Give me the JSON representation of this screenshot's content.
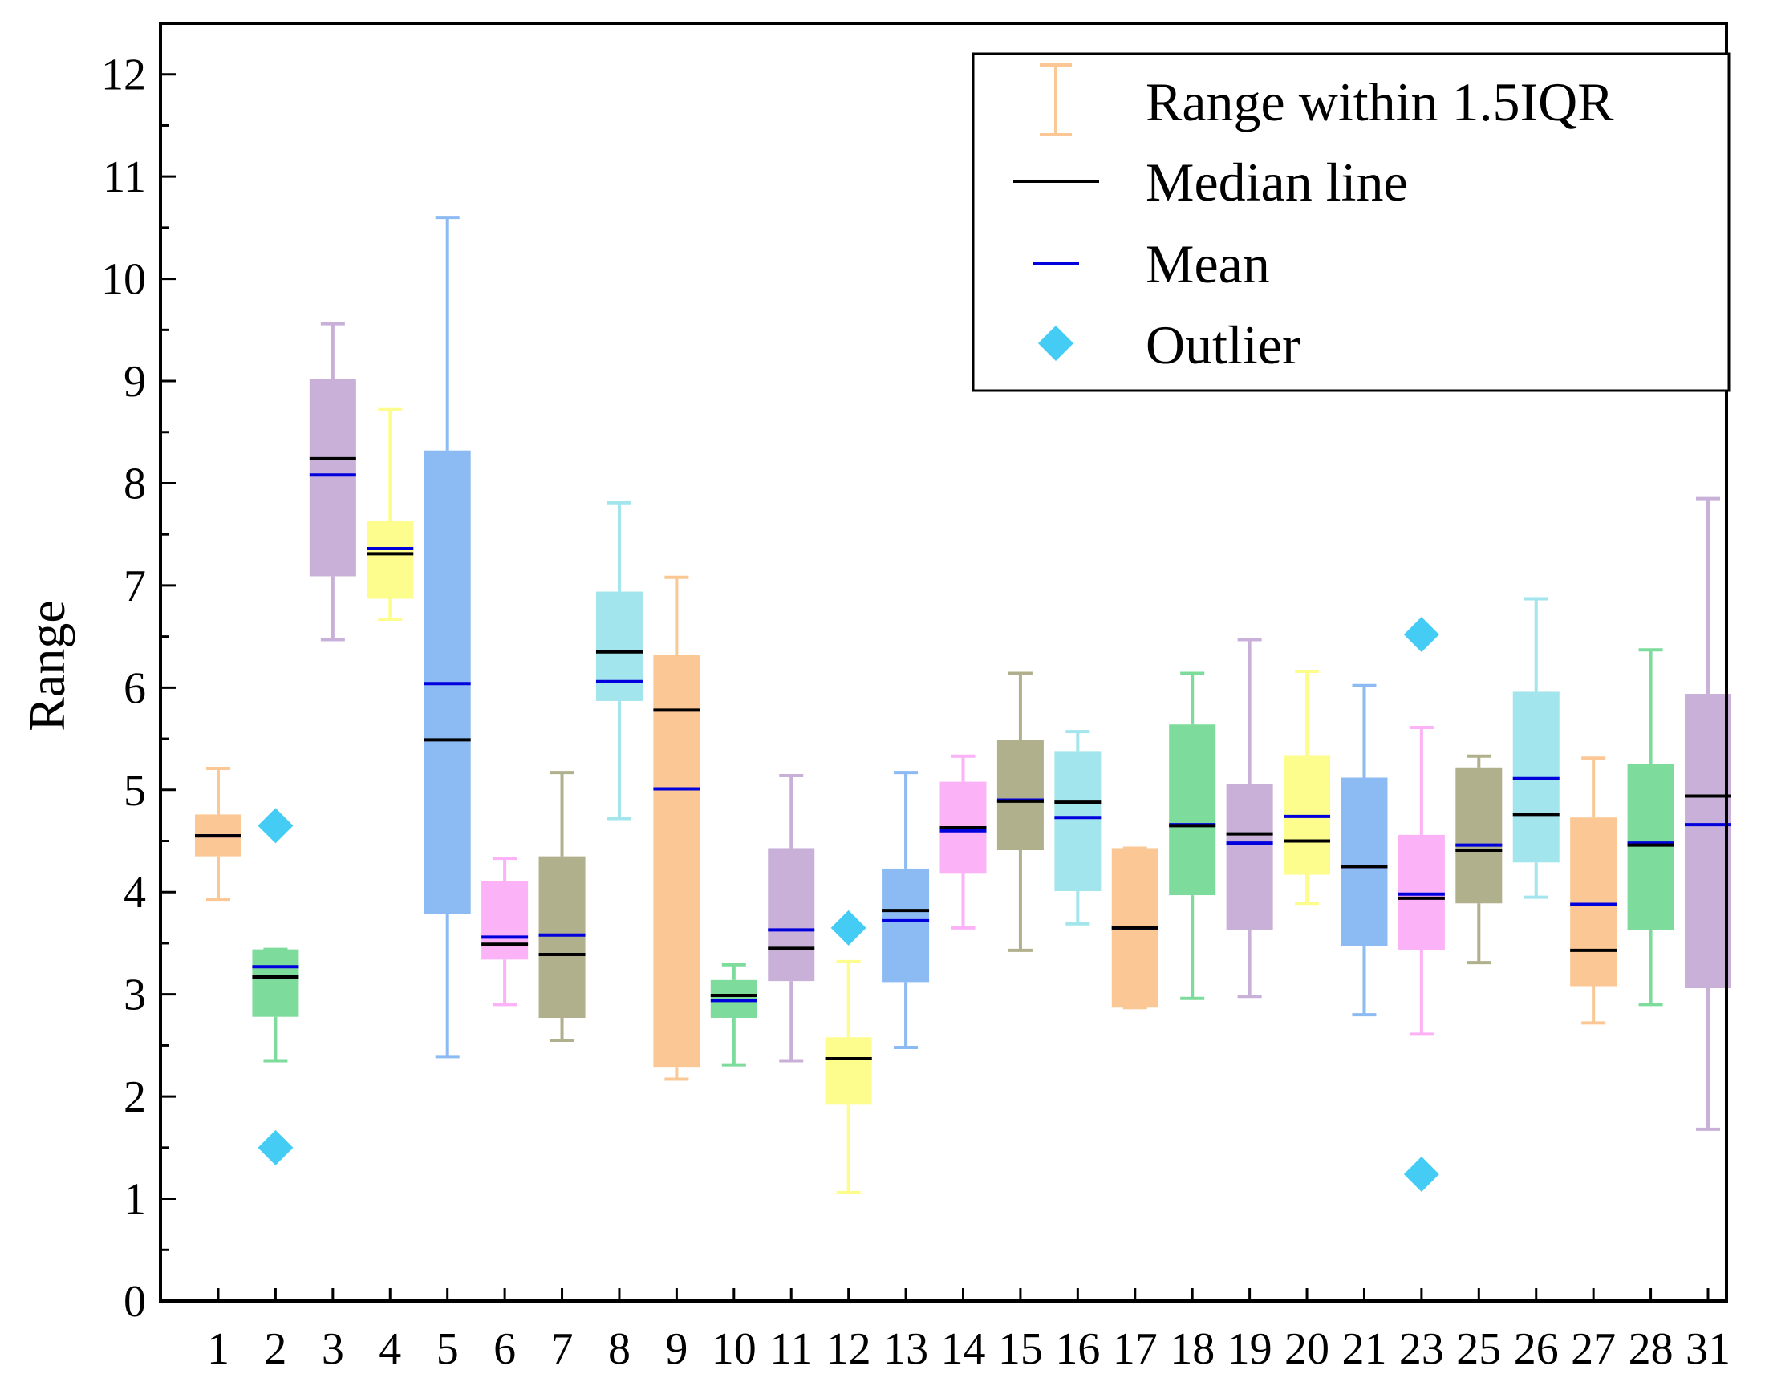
{
  "chart_data": {
    "type": "box",
    "title": "",
    "xlabel": "",
    "ylabel": "Range",
    "ylim": [
      0,
      12.5
    ],
    "yticks": [
      0,
      1,
      2,
      3,
      4,
      5,
      6,
      7,
      8,
      9,
      10,
      11,
      12
    ],
    "grid": false,
    "legend_position": "top-right",
    "legend": {
      "range": "Range within 1.5IQR",
      "median": "Median line",
      "mean": "Mean",
      "outlier": "Outlier"
    },
    "colors": {
      "orange": "#fbc895",
      "green": "#7ddb9b",
      "purple": "#c8b0d8",
      "yellow": "#fdfd8e",
      "blue": "#8cbaf2",
      "pink": "#fbb2f7",
      "olive": "#b0b08c",
      "cyan": "#a2e5ec",
      "median": "#000000",
      "mean": "#0000dd",
      "outlier": "#44ccf5"
    },
    "categories": [
      "1",
      "2",
      "3",
      "4",
      "5",
      "6",
      "7",
      "8",
      "9",
      "10",
      "11",
      "12",
      "13",
      "14",
      "15",
      "16",
      "17",
      "18",
      "19",
      "20",
      "21",
      "23",
      "25",
      "26",
      "27",
      "28",
      "31"
    ],
    "boxes": [
      {
        "label": "1",
        "color": "orange",
        "whisker_low": 3.93,
        "q1": 4.35,
        "median": 4.55,
        "q3": 4.76,
        "whisker_high": 5.21,
        "mean": 4.55,
        "outliers": []
      },
      {
        "label": "2",
        "color": "green",
        "whisker_low": 2.35,
        "q1": 2.78,
        "median": 3.17,
        "q3": 3.44,
        "whisker_high": 3.44,
        "mean": 3.27,
        "outliers": [
          4.65,
          1.5
        ]
      },
      {
        "label": "3",
        "color": "purple",
        "whisker_low": 6.47,
        "q1": 7.09,
        "median": 8.24,
        "q3": 9.02,
        "whisker_high": 9.56,
        "mean": 8.08,
        "outliers": []
      },
      {
        "label": "4",
        "color": "yellow",
        "whisker_low": 6.67,
        "q1": 6.87,
        "median": 7.31,
        "q3": 7.63,
        "whisker_high": 8.72,
        "mean": 7.36,
        "outliers": []
      },
      {
        "label": "5",
        "color": "blue",
        "whisker_low": 2.39,
        "q1": 3.79,
        "median": 5.49,
        "q3": 8.32,
        "whisker_high": 10.6,
        "mean": 6.04,
        "outliers": []
      },
      {
        "label": "6",
        "color": "pink",
        "whisker_low": 2.9,
        "q1": 3.34,
        "median": 3.49,
        "q3": 4.11,
        "whisker_high": 4.33,
        "mean": 3.56,
        "outliers": []
      },
      {
        "label": "7",
        "color": "olive",
        "whisker_low": 2.55,
        "q1": 2.77,
        "median": 3.39,
        "q3": 4.35,
        "whisker_high": 5.17,
        "mean": 3.58,
        "outliers": []
      },
      {
        "label": "8",
        "color": "cyan",
        "whisker_low": 4.72,
        "q1": 5.87,
        "median": 6.35,
        "q3": 6.94,
        "whisker_high": 7.81,
        "mean": 6.06,
        "outliers": []
      },
      {
        "label": "9",
        "color": "orange",
        "whisker_low": 2.17,
        "q1": 2.29,
        "median": 5.78,
        "q3": 6.32,
        "whisker_high": 7.08,
        "mean": 5.01,
        "outliers": []
      },
      {
        "label": "10",
        "color": "green",
        "whisker_low": 2.31,
        "q1": 2.77,
        "median": 2.99,
        "q3": 3.14,
        "whisker_high": 3.29,
        "mean": 2.94,
        "outliers": []
      },
      {
        "label": "11",
        "color": "purple",
        "whisker_low": 2.35,
        "q1": 3.13,
        "median": 3.45,
        "q3": 4.43,
        "whisker_high": 5.14,
        "mean": 3.63,
        "outliers": []
      },
      {
        "label": "12",
        "color": "yellow",
        "whisker_low": 1.06,
        "q1": 1.92,
        "median": 2.37,
        "q3": 2.58,
        "whisker_high": 3.32,
        "mean": 2.37,
        "outliers": [
          3.65
        ]
      },
      {
        "label": "13",
        "color": "blue",
        "whisker_low": 2.48,
        "q1": 3.12,
        "median": 3.82,
        "q3": 4.23,
        "whisker_high": 5.17,
        "mean": 3.72,
        "outliers": []
      },
      {
        "label": "14",
        "color": "pink",
        "whisker_low": 3.65,
        "q1": 4.18,
        "median": 4.63,
        "q3": 5.08,
        "whisker_high": 5.33,
        "mean": 4.6,
        "outliers": []
      },
      {
        "label": "15",
        "color": "olive",
        "whisker_low": 3.43,
        "q1": 4.41,
        "median": 4.89,
        "q3": 5.49,
        "whisker_high": 6.14,
        "mean": 4.9,
        "outliers": []
      },
      {
        "label": "16",
        "color": "cyan",
        "whisker_low": 3.69,
        "q1": 4.01,
        "median": 4.88,
        "q3": 5.38,
        "whisker_high": 5.57,
        "mean": 4.73,
        "outliers": []
      },
      {
        "label": "17",
        "color": "orange",
        "whisker_low": 2.87,
        "q1": 2.87,
        "median": 3.65,
        "q3": 4.43,
        "whisker_high": 4.43,
        "mean": 3.65,
        "outliers": []
      },
      {
        "label": "18",
        "color": "green",
        "whisker_low": 2.96,
        "q1": 3.97,
        "median": 4.65,
        "q3": 5.64,
        "whisker_high": 6.14,
        "mean": 4.66,
        "outliers": []
      },
      {
        "label": "19",
        "color": "purple",
        "whisker_low": 2.98,
        "q1": 3.63,
        "median": 4.57,
        "q3": 5.06,
        "whisker_high": 6.47,
        "mean": 4.48,
        "outliers": []
      },
      {
        "label": "20",
        "color": "yellow",
        "whisker_low": 3.89,
        "q1": 4.17,
        "median": 4.5,
        "q3": 5.34,
        "whisker_high": 6.16,
        "mean": 4.74,
        "outliers": []
      },
      {
        "label": "21",
        "color": "blue",
        "whisker_low": 2.8,
        "q1": 3.47,
        "median": 4.25,
        "q3": 5.12,
        "whisker_high": 6.02,
        "mean": 4.25,
        "outliers": []
      },
      {
        "label": "23",
        "color": "pink",
        "whisker_low": 2.61,
        "q1": 3.43,
        "median": 3.94,
        "q3": 4.56,
        "whisker_high": 5.61,
        "mean": 3.98,
        "outliers": [
          6.52,
          1.24
        ]
      },
      {
        "label": "25",
        "color": "olive",
        "whisker_low": 3.31,
        "q1": 3.89,
        "median": 4.41,
        "q3": 5.22,
        "whisker_high": 5.33,
        "mean": 4.46,
        "outliers": []
      },
      {
        "label": "26",
        "color": "cyan",
        "whisker_low": 3.95,
        "q1": 4.29,
        "median": 4.76,
        "q3": 5.96,
        "whisker_high": 6.87,
        "mean": 5.11,
        "outliers": []
      },
      {
        "label": "27",
        "color": "orange",
        "whisker_low": 2.72,
        "q1": 3.08,
        "median": 3.43,
        "q3": 4.73,
        "whisker_high": 5.31,
        "mean": 3.88,
        "outliers": []
      },
      {
        "label": "28",
        "color": "green",
        "whisker_low": 2.9,
        "q1": 3.63,
        "median": 4.46,
        "q3": 5.25,
        "whisker_high": 6.37,
        "mean": 4.48,
        "outliers": []
      },
      {
        "label": "31",
        "color": "purple",
        "whisker_low": 1.68,
        "q1": 3.06,
        "median": 4.94,
        "q3": 5.94,
        "whisker_high": 7.85,
        "mean": 4.66,
        "outliers": []
      }
    ]
  }
}
